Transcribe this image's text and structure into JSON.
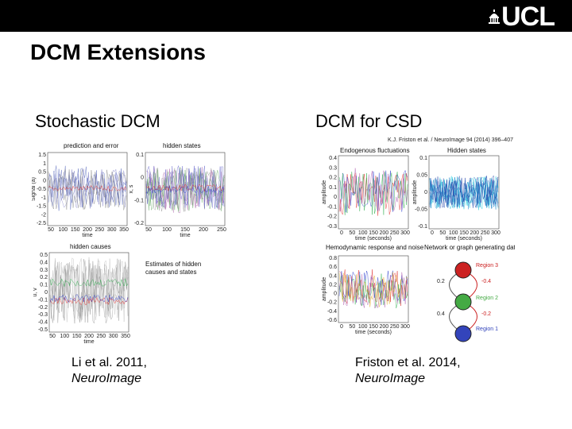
{
  "header": {
    "logo_text": "UCL"
  },
  "slide": {
    "title": "DCM Extensions",
    "left": {
      "heading": "Stochastic DCM",
      "citation_authors": "Li et al. 2011,",
      "citation_journal": "NeuroImage",
      "panels": {
        "prediction_title": "prediction and error",
        "prediction_ylabel": "Signal (a)",
        "prediction_xlabel": "time",
        "prediction_yticks": [
          "1.5",
          "1",
          "0.5",
          "0",
          "-0.5",
          "-1",
          "-1.5",
          "-2",
          "-2.5"
        ],
        "prediction_xticks": [
          "50",
          "100",
          "150",
          "200",
          "250",
          "300",
          "350"
        ],
        "hidden_states_title": "hidden states",
        "hidden_states_ylabel": "x, s",
        "hidden_states_xlabel": "time",
        "hidden_states_yticks": [
          "0.1",
          "0",
          "-0.1",
          "-0.2"
        ],
        "hidden_states_xticks": [
          "50",
          "100",
          "150",
          "200",
          "250"
        ],
        "hidden_causes_title": "hidden causes",
        "hidden_causes_ylabel": "u, v",
        "hidden_causes_xlabel": "time",
        "hidden_causes_yticks": [
          "0.5",
          "0.4",
          "0.3",
          "0.2",
          "0.1",
          "0",
          "-0.1",
          "-0.2",
          "-0.3",
          "-0.4",
          "-0.5"
        ],
        "hidden_causes_xticks": [
          "50",
          "100",
          "150",
          "200",
          "250",
          "300",
          "350"
        ],
        "estimates_caption_line1": "Estimates of hidden",
        "estimates_caption_line2": "causes and states"
      }
    },
    "right": {
      "heading": "DCM for CSD",
      "citation_authors": "Friston et al. 2014,",
      "citation_journal": "NeuroImage",
      "panels": {
        "journal_ref": "K.J. Friston et al. / NeuroImage 94 (2014) 396–407",
        "endogenous_title": "Endogenous fluctuations",
        "endogenous_ylabel": "amplitude",
        "endogenous_xlabel": "time (seconds)",
        "endogenous_yticks": [
          "0.4",
          "0.3",
          "0.2",
          "0.1",
          "0",
          "-0.1",
          "-0.2",
          "-0.3"
        ],
        "endogenous_xticks": [
          "0",
          "50",
          "100",
          "150",
          "200",
          "250",
          "300"
        ],
        "hidden_title": "Hidden states",
        "hidden_ylabel": "amplitude",
        "hidden_xlabel": "time (seconds)",
        "hidden_yticks": [
          "0.1",
          "0.05",
          "0",
          "-0.05",
          "-0.1"
        ],
        "hidden_xticks": [
          "0",
          "50",
          "100",
          "150",
          "200",
          "250",
          "300"
        ],
        "hemo_title": "Hemodynamic response and noise",
        "hemo_ylabel": "amplitude",
        "hemo_xlabel": "time (seconds)",
        "hemo_yticks": [
          "0.8",
          "0.6",
          "0.4",
          "0.2",
          "0",
          "-0.2",
          "-0.4",
          "-0.6"
        ],
        "hemo_xticks": [
          "0",
          "50",
          "100",
          "150",
          "200",
          "250",
          "300"
        ],
        "network_title": "Network or graph generating data",
        "region3": "Region 3",
        "region2": "Region 2",
        "region1": "Region 1",
        "w_left_top": "0.2",
        "w_left_bottom": "0.4",
        "w_right_top": "-0.4",
        "w_right_bottom": "-0.2"
      }
    }
  },
  "colors": {
    "topbar": "#000000",
    "trace_red": "#e02020",
    "trace_blue": "#2233cc",
    "trace_green": "#22aa44",
    "trace_cyan": "#22ccdd",
    "node_red": "#cc2222",
    "node_green": "#44aa44",
    "node_blue": "#3344bb"
  }
}
